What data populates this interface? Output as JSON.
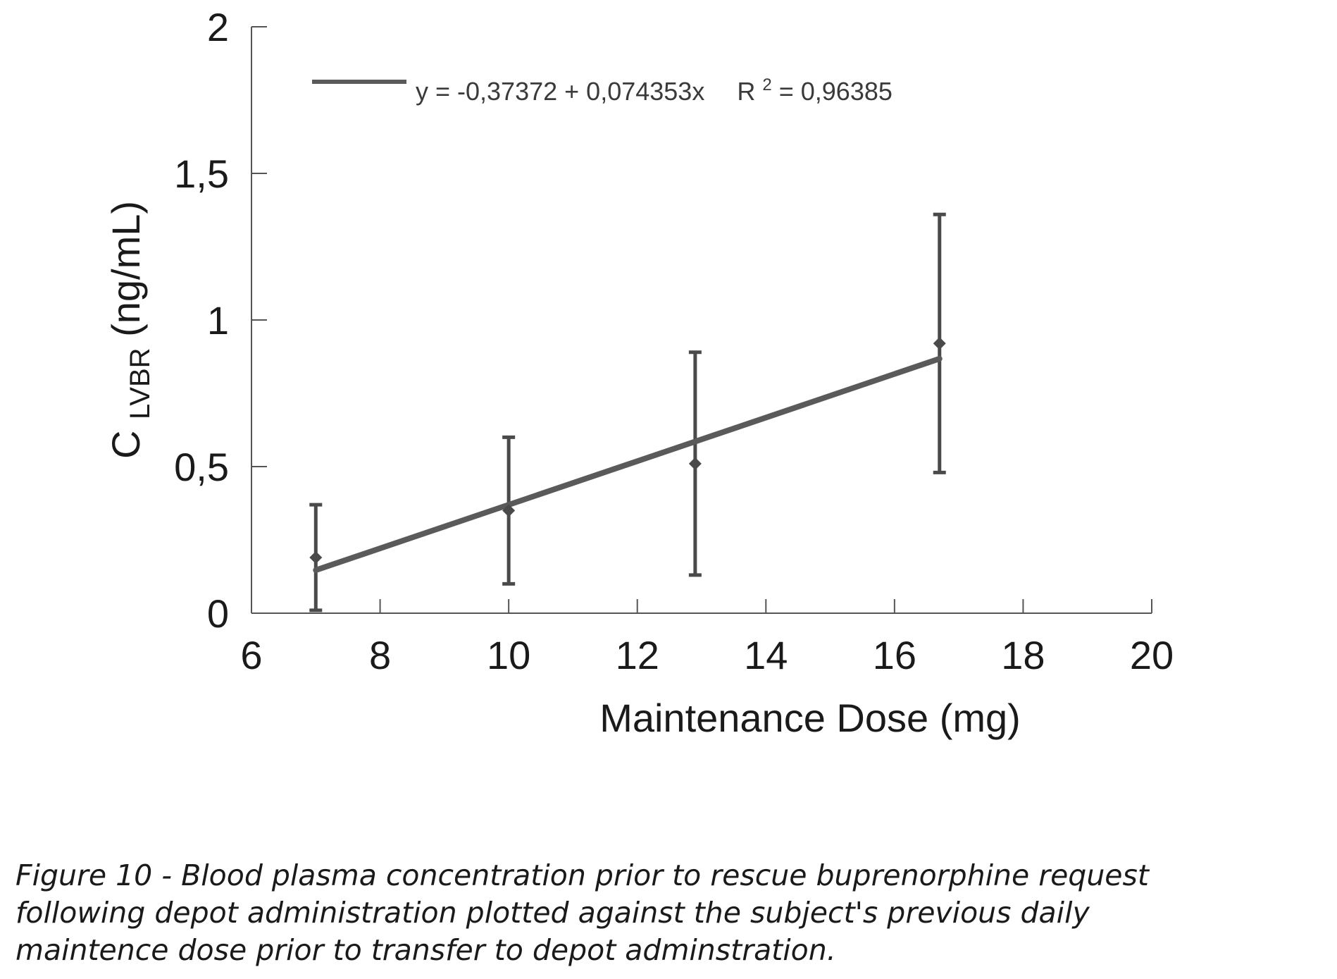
{
  "chart_data": {
    "type": "scatter",
    "xlabel": "Maintenance Dose (mg)",
    "ylabel_main": "C",
    "ylabel_sub": "LVBR",
    "ylabel_unit": "(ng/mL)",
    "xlim": [
      6,
      20
    ],
    "ylim": [
      0,
      2
    ],
    "x_ticks": [
      6,
      8,
      10,
      12,
      14,
      16,
      18,
      20
    ],
    "x_tick_labels": [
      "6",
      "8",
      "10",
      "12",
      "14",
      "16",
      "18",
      "20"
    ],
    "y_ticks": [
      0,
      0.5,
      1,
      1.5,
      2
    ],
    "y_tick_labels": [
      "0",
      "0,5",
      "1",
      "1,5",
      "2"
    ],
    "grid": false,
    "legend_position": "top-left",
    "series": [
      {
        "marker": "diamond",
        "x": [
          7,
          10,
          12.9,
          16.7
        ],
        "y": [
          0.19,
          0.35,
          0.51,
          0.92
        ],
        "err_low": [
          0.01,
          0.1,
          0.13,
          0.48
        ],
        "err_high": [
          0.37,
          0.6,
          0.89,
          1.36
        ]
      }
    ],
    "fit": {
      "intercept": -0.37372,
      "slope": 0.074353,
      "x_range": [
        7,
        16.7
      ],
      "equation": "y = -0,37372 + 0,074353x",
      "r2_prefix": "R",
      "r2_sup": "2",
      "r2_value": "= 0,96385"
    },
    "colors": {
      "line": "#5a5a5a",
      "marker": "#4a4a4a",
      "axis": "#555555",
      "text": "#1a1a1a"
    }
  },
  "caption": {
    "line1": "Figure 10 - Blood plasma concentration prior to rescue buprenorphine request",
    "line2": "following depot administration plotted against the subject's previous daily",
    "line3": "maintence dose prior to transfer to depot adminstration."
  }
}
